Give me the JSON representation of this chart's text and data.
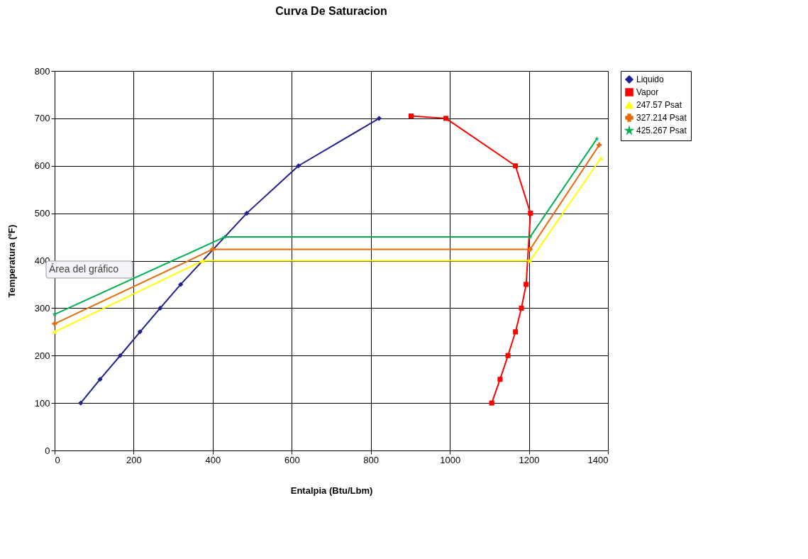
{
  "chart_data": {
    "type": "line",
    "title": "Curva De Saturacion",
    "xlabel": "Entalpia (Btu/Lbm)",
    "ylabel": "Temperatura (ºF)",
    "xlim": [
      0,
      1400
    ],
    "xticks": [
      0,
      200,
      400,
      600,
      800,
      1000,
      1200,
      1400
    ],
    "ylim": [
      0,
      800
    ],
    "yticks": [
      0,
      100,
      200,
      300,
      400,
      500,
      600,
      700,
      800
    ],
    "grid": true,
    "legend": "right",
    "annotations": [
      "Área del gráfico"
    ],
    "series": [
      {
        "name": "Liquido",
        "color": "#1f1f8f",
        "marker": "diamond",
        "x": [
          66,
          115,
          166,
          216,
          267,
          319,
          375,
          486,
          617,
          821
        ],
        "values": [
          100,
          150,
          200,
          250,
          300,
          350,
          null,
          500,
          600,
          700
        ]
      },
      {
        "name": "Vapor",
        "color": "#ff0000",
        "marker": "square",
        "x": [
          1106,
          1127,
          1147,
          1166,
          1181,
          1193,
          1203,
          1204,
          1166,
          990,
          902
        ],
        "values": [
          100,
          150,
          200,
          250,
          300,
          350,
          null,
          500,
          600,
          700,
          705
        ]
      },
      {
        "name": "247.57 Psat",
        "color": "#ffff00",
        "marker": "triangle",
        "x": [
          0,
          375,
          1203,
          1382
        ],
        "values": [
          250,
          400,
          400,
          616
        ]
      },
      {
        "name": "327.214 Psat",
        "color": "#e36c09",
        "marker": "cross",
        "x": [
          0,
          400,
          1203,
          1378
        ],
        "values": [
          267,
          424,
          424,
          644
        ]
      },
      {
        "name": "425.267 Psat",
        "color": "#00b050",
        "marker": "star",
        "x": [
          0,
          430,
          1203,
          1372
        ],
        "values": [
          287,
          450,
          450,
          657
        ]
      }
    ]
  }
}
